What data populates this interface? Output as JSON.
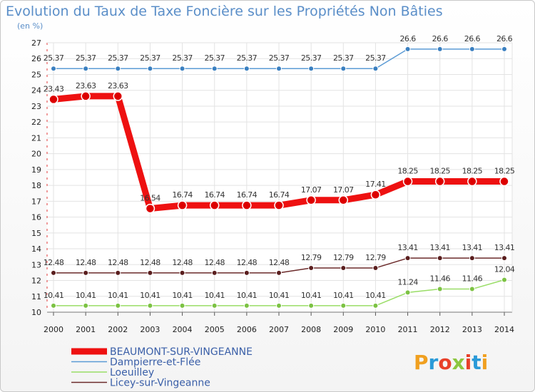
{
  "chart_data": {
    "type": "line",
    "title": "Evolution du Taux de Taxe Foncière sur les Propriétés Non Bâties",
    "subtitle": "(en %)",
    "xlabel": "",
    "ylabel": "(en %)",
    "ylim": [
      10,
      27
    ],
    "yticks": [
      10,
      11,
      12,
      13,
      14,
      15,
      16,
      17,
      18,
      19,
      20,
      21,
      22,
      23,
      24,
      25,
      26,
      27
    ],
    "categories": [
      "2000",
      "2001",
      "2002",
      "2003",
      "2004",
      "2005",
      "2006",
      "2007",
      "2008",
      "2009",
      "2010",
      "2011",
      "2012",
      "2013",
      "2014"
    ],
    "series": [
      {
        "name": "BEAUMONT-SUR-VINGEANNE",
        "color": "#ee1111",
        "values": [
          23.43,
          23.63,
          23.63,
          16.54,
          16.74,
          16.74,
          16.74,
          16.74,
          17.07,
          17.07,
          17.41,
          18.25,
          18.25,
          18.25,
          18.25
        ]
      },
      {
        "name": "Dampierre-et-Flée",
        "color": "#5b9bd5",
        "values": [
          25.37,
          25.37,
          25.37,
          25.37,
          25.37,
          25.37,
          25.37,
          25.37,
          25.37,
          25.37,
          25.37,
          26.6,
          26.6,
          26.6,
          26.6
        ]
      },
      {
        "name": "Loeuilley",
        "color": "#99dd66",
        "values": [
          10.41,
          10.41,
          10.41,
          10.41,
          10.41,
          10.41,
          10.41,
          10.41,
          10.41,
          10.41,
          10.41,
          11.24,
          11.46,
          11.46,
          12.04
        ]
      },
      {
        "name": "Licey-sur-Vingeanne",
        "color": "#6b2a2a",
        "values": [
          12.48,
          12.48,
          12.48,
          12.48,
          12.48,
          12.48,
          12.48,
          12.48,
          12.79,
          12.79,
          12.79,
          13.41,
          13.41,
          13.41,
          13.41
        ]
      }
    ],
    "legend_position": "bottom-left"
  },
  "brand": {
    "letters": [
      "P",
      "r",
      "o",
      "x",
      "i",
      "t",
      "i"
    ],
    "colors": [
      "#f0a020",
      "#2a9ad8",
      "#e8402a",
      "#8cc63f",
      "#e8402a",
      "#2a9ad8",
      "#f0a020"
    ]
  }
}
